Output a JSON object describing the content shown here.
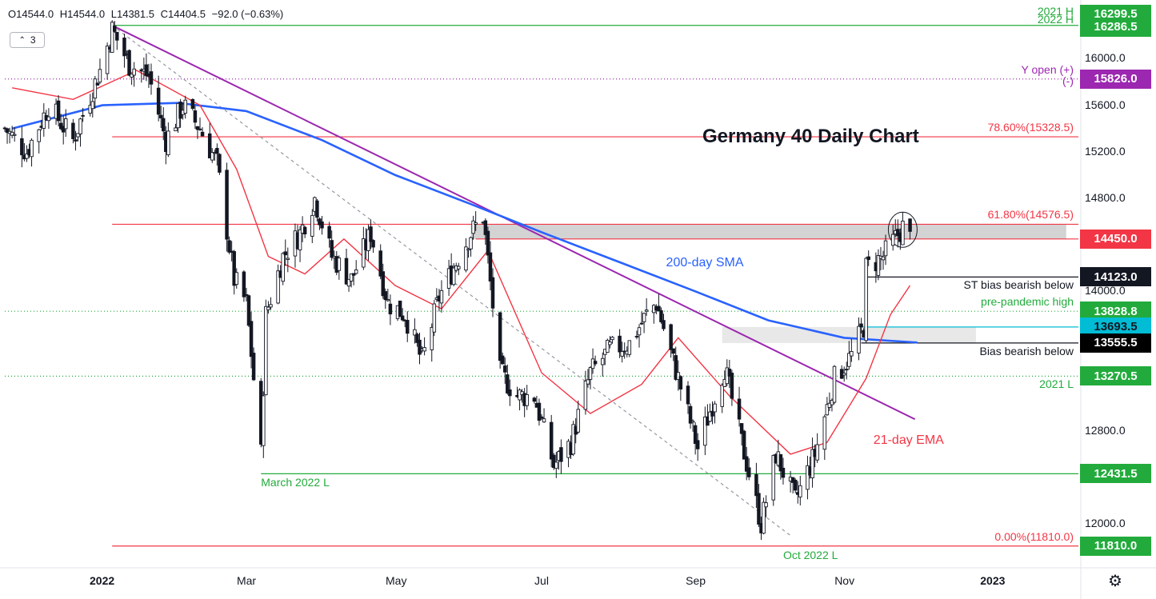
{
  "header": {
    "open_label": "O14544.0",
    "high_label": "H14544.0",
    "low_label": "L14381.5",
    "close_label": "C14404.5",
    "change_label": "−92.0 (−0.63%)",
    "indicator_badge": "3"
  },
  "chart_data": {
    "type": "candlestick",
    "title": "Germany 40 Daily Chart",
    "ylim": [
      11650,
      16450
    ],
    "y_ticks": [
      "16000.0",
      "15600.0",
      "15200.0",
      "14800.0",
      "14000.0",
      "12800.0",
      "12000.0"
    ],
    "x_ticks": [
      "2022",
      "Mar",
      "May",
      "Jul",
      "Sep",
      "Nov",
      "2023"
    ],
    "x_tick_dates": [
      "2022-01-01",
      "2022-03-01",
      "2022-05-01",
      "2022-07-01",
      "2022-09-01",
      "2022-11-01",
      "2023-01-01"
    ],
    "date_range": [
      "2021-11-22",
      "2023-02-05"
    ],
    "close_path": [
      [
        "2021-11-22",
        15400
      ],
      [
        "2021-12-01",
        15200
      ],
      [
        "2021-12-10",
        15600
      ],
      [
        "2021-12-20",
        15300
      ],
      [
        "2021-12-31",
        15900
      ],
      [
        "2022-01-05",
        16250
      ],
      [
        "2022-01-12",
        15950
      ],
      [
        "2022-01-20",
        15850
      ],
      [
        "2022-01-27",
        15300
      ],
      [
        "2022-02-03",
        15600
      ],
      [
        "2022-02-10",
        15400
      ],
      [
        "2022-02-17",
        15100
      ],
      [
        "2022-02-24",
        14100
      ],
      [
        "2022-03-01",
        13900
      ],
      [
        "2022-03-07",
        12600
      ],
      [
        "2022-03-09",
        13800
      ],
      [
        "2022-03-16",
        14300
      ],
      [
        "2022-03-23",
        14500
      ],
      [
        "2022-03-29",
        14800
      ],
      [
        "2022-04-05",
        14300
      ],
      [
        "2022-04-13",
        14100
      ],
      [
        "2022-04-21",
        14500
      ],
      [
        "2022-04-28",
        13900
      ],
      [
        "2022-05-05",
        13800
      ],
      [
        "2022-05-12",
        13400
      ],
      [
        "2022-05-19",
        13950
      ],
      [
        "2022-05-26",
        14250
      ],
      [
        "2022-06-01",
        14500
      ],
      [
        "2022-06-06",
        14650
      ],
      [
        "2022-06-13",
        13300
      ],
      [
        "2022-06-20",
        13100
      ],
      [
        "2022-06-27",
        13100
      ],
      [
        "2022-07-05",
        12500
      ],
      [
        "2022-07-12",
        12700
      ],
      [
        "2022-07-20",
        13300
      ],
      [
        "2022-07-28",
        13500
      ],
      [
        "2022-08-05",
        13550
      ],
      [
        "2022-08-12",
        13800
      ],
      [
        "2022-08-16",
        13900
      ],
      [
        "2022-08-25",
        13250
      ],
      [
        "2022-09-02",
        12650
      ],
      [
        "2022-09-09",
        13100
      ],
      [
        "2022-09-13",
        13350
      ],
      [
        "2022-09-20",
        12700
      ],
      [
        "2022-09-28",
        12000
      ],
      [
        "2022-10-04",
        12600
      ],
      [
        "2022-10-12",
        12200
      ],
      [
        "2022-10-20",
        12600
      ],
      [
        "2022-10-28",
        13250
      ],
      [
        "2022-11-04",
        13450
      ],
      [
        "2022-11-09",
        13700
      ],
      [
        "2022-11-10",
        14200
      ],
      [
        "2022-11-17",
        14300
      ],
      [
        "2022-11-25",
        14550
      ],
      [
        "2022-11-28",
        14450
      ]
    ],
    "sma_200": [
      [
        "2021-11-25",
        15400
      ],
      [
        "2022-01-01",
        15600
      ],
      [
        "2022-02-01",
        15620
      ],
      [
        "2022-03-01",
        15550
      ],
      [
        "2022-04-01",
        15300
      ],
      [
        "2022-05-01",
        15000
      ],
      [
        "2022-06-01",
        14750
      ],
      [
        "2022-07-01",
        14500
      ],
      [
        "2022-08-01",
        14250
      ],
      [
        "2022-09-01",
        14000
      ],
      [
        "2022-10-01",
        13750
      ],
      [
        "2022-11-01",
        13600
      ],
      [
        "2022-12-01",
        13560
      ]
    ],
    "ema_21": [
      [
        "2021-11-25",
        15750
      ],
      [
        "2021-12-20",
        15650
      ],
      [
        "2022-01-15",
        15900
      ],
      [
        "2022-02-10",
        15600
      ],
      [
        "2022-02-25",
        15050
      ],
      [
        "2022-03-10",
        14300
      ],
      [
        "2022-03-25",
        14150
      ],
      [
        "2022-04-10",
        14450
      ],
      [
        "2022-05-01",
        14050
      ],
      [
        "2022-05-20",
        13850
      ],
      [
        "2022-06-08",
        14350
      ],
      [
        "2022-06-30",
        13300
      ],
      [
        "2022-07-20",
        12950
      ],
      [
        "2022-08-10",
        13200
      ],
      [
        "2022-08-25",
        13600
      ],
      [
        "2022-09-15",
        13100
      ],
      [
        "2022-10-10",
        12600
      ],
      [
        "2022-10-25",
        12700
      ],
      [
        "2022-11-10",
        13250
      ],
      [
        "2022-11-20",
        13800
      ],
      [
        "2022-11-28",
        14050
      ]
    ],
    "trendline": [
      [
        "2022-01-05",
        16286.5
      ],
      [
        "2022-11-30",
        12900
      ]
    ],
    "dashed_line": [
      [
        "2022-01-05",
        16286.5
      ],
      [
        "2022-10-10",
        11900
      ]
    ],
    "zones": [
      {
        "from": "2022-06-01",
        "to": "2023-01-31",
        "low": 14450,
        "high": 14576.5
      },
      {
        "from": "2022-09-12",
        "to": "2022-12-25",
        "low": 13555.5,
        "high": 13693.5
      }
    ],
    "levels": [
      {
        "value": 16286.5,
        "label": "2022 H",
        "color": "#22ab3c",
        "style": "solid"
      },
      {
        "value": 16299.5,
        "label": "2021 H",
        "color": "#22ab3c",
        "style": "none"
      },
      {
        "value": 15826.0,
        "label": "Y open (+)",
        "color": "#9c27b0",
        "style": "dotted"
      },
      {
        "value": 15328.5,
        "label": "78.60%(15328.5)",
        "color": "#f23645",
        "style": "solid"
      },
      {
        "value": 14576.5,
        "label": "61.80%(14576.5)",
        "color": "#f23645",
        "style": "solid"
      },
      {
        "value": 14450.0,
        "label": "",
        "color": "#f23645",
        "style": "solid"
      },
      {
        "value": 14123.0,
        "label": "ST bias bearish below",
        "color": "#131722",
        "style": "solid"
      },
      {
        "value": 13828.8,
        "label": "pre-pandemic high",
        "color": "#22ab3c",
        "style": "dotted"
      },
      {
        "value": 13693.5,
        "label": "",
        "color": "#00bcd4",
        "style": "solid"
      },
      {
        "value": 13555.5,
        "label": "Bias bearish below",
        "color": "#131722",
        "style": "solid"
      },
      {
        "value": 13270.5,
        "label": "2021 L",
        "color": "#22ab3c",
        "style": "dotted"
      },
      {
        "value": 12431.5,
        "label": "March 2022 L",
        "color": "#22ab3c",
        "style": "solid"
      },
      {
        "value": 11810.0,
        "label": "0.00%(11810.0)",
        "color": "#f23645",
        "style": "solid"
      }
    ],
    "annotations": {
      "sma_label": "200-day SMA",
      "ema_label": "21-day EMA",
      "oct_low": "Oct 2022 L",
      "y_open_minus": "(-)"
    },
    "price_boxes": [
      {
        "value": 16299.5,
        "label": "16299.5",
        "bg": "#22ab3c",
        "fg": "#ffffff"
      },
      {
        "value": 16286.5,
        "label": "16286.5",
        "bg": "#22ab3c",
        "fg": "#ffffff"
      },
      {
        "value": 15826.0,
        "label": "15826.0",
        "bg": "#9c27b0",
        "fg": "#ffffff"
      },
      {
        "value": 14450.0,
        "label": "14450.0",
        "bg": "#f23645",
        "fg": "#ffffff"
      },
      {
        "value": 14123.0,
        "label": "14123.0",
        "bg": "#131722",
        "fg": "#ffffff"
      },
      {
        "value": 13828.8,
        "label": "13828.8",
        "bg": "#22ab3c",
        "fg": "#ffffff"
      },
      {
        "value": 13693.5,
        "label": "13693.5",
        "bg": "#00bcd4",
        "fg": "#131722"
      },
      {
        "value": 13555.5,
        "label": "13555.5",
        "bg": "#000000",
        "fg": "#ffffff"
      },
      {
        "value": 13270.5,
        "label": "13270.5",
        "bg": "#22ab3c",
        "fg": "#ffffff"
      },
      {
        "value": 12431.5,
        "label": "12431.5",
        "bg": "#22ab3c",
        "fg": "#ffffff"
      },
      {
        "value": 11810.0,
        "label": "11810.0",
        "bg": "#22ab3c",
        "fg": "#ffffff"
      }
    ],
    "colors": {
      "up": "#131722",
      "down": "#131722",
      "sma": "#2962ff",
      "ema": "#f23645",
      "trend": "#9c27b0",
      "zone": "#c8c8c8",
      "zone2": "#e6e6e6"
    }
  },
  "toolbar": {
    "settings_icon": "gear-icon"
  }
}
